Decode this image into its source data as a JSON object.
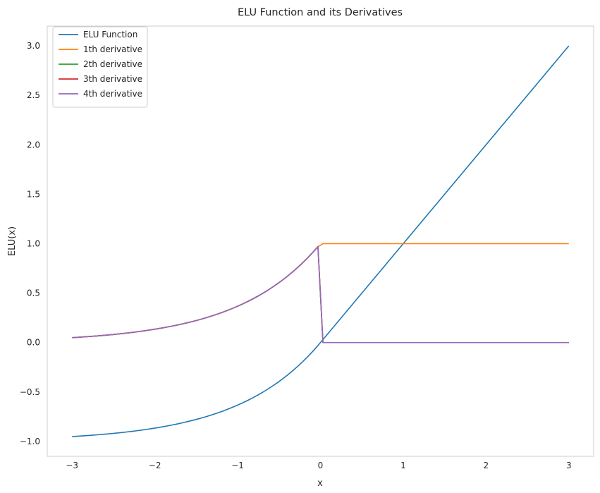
{
  "chart_data": {
    "type": "line",
    "title": "ELU Function and its Derivatives",
    "xlabel": "x",
    "ylabel": "ELU(x)",
    "xlim": [
      -3.3,
      3.3
    ],
    "ylim": [
      -1.15,
      3.2
    ],
    "xticks": [
      -3,
      -2,
      -1,
      0,
      1,
      2,
      3
    ],
    "xtick_labels": [
      "−3",
      "−2",
      "−1",
      "0",
      "1",
      "2",
      "3"
    ],
    "yticks": [
      -1.0,
      -0.5,
      0.0,
      0.5,
      1.0,
      1.5,
      2.0,
      2.5,
      3.0
    ],
    "ytick_labels": [
      "−1.0",
      "−0.5",
      "0.0",
      "0.5",
      "1.0",
      "1.5",
      "2.0",
      "2.5",
      "3.0"
    ],
    "grid": false,
    "legend_position": "top-left",
    "x_range": [
      -3,
      3
    ],
    "series": [
      {
        "name": "ELU Function",
        "color": "#1f77b4",
        "formula": "x>0 ? x : exp(x)-1"
      },
      {
        "name": "1th derivative",
        "color": "#ff7f0e",
        "formula": "x>0 ? 1 : exp(x)"
      },
      {
        "name": "2th derivative",
        "color": "#2ca02c",
        "formula": "x>0 ? 0 : exp(x)"
      },
      {
        "name": "3th derivative",
        "color": "#d62728",
        "formula": "x>0 ? 0 : exp(x)"
      },
      {
        "name": "4th derivative",
        "color": "#9467bd",
        "formula": "x>0 ? 0 : exp(x)"
      }
    ],
    "sample_points": {
      "x": [
        -3,
        -2,
        -1,
        0,
        1,
        2,
        3
      ],
      "ELU Function": [
        -0.95,
        -0.86,
        -0.63,
        0.0,
        1.0,
        2.0,
        3.0
      ],
      "1th derivative": [
        0.05,
        0.14,
        0.37,
        1.0,
        1.0,
        1.0,
        1.0
      ],
      "2th derivative": [
        0.05,
        0.14,
        0.37,
        1.0,
        0.0,
        0.0,
        0.0
      ],
      "3th derivative": [
        0.05,
        0.14,
        0.37,
        1.0,
        0.0,
        0.0,
        0.0
      ],
      "4th derivative": [
        0.05,
        0.14,
        0.37,
        1.0,
        0.0,
        0.0,
        0.0
      ]
    }
  }
}
